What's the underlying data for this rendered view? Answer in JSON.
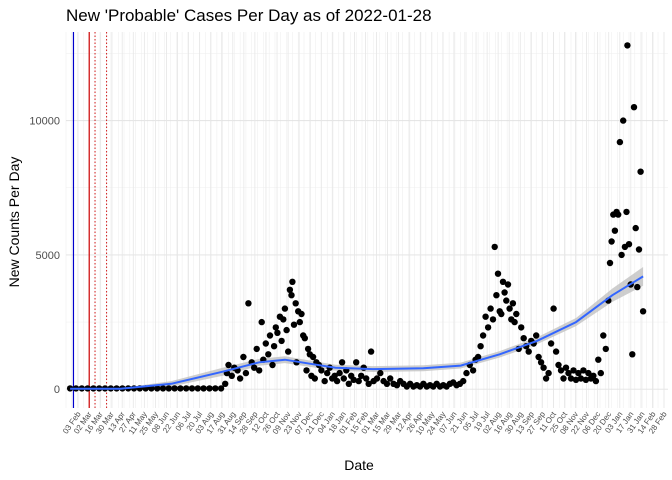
{
  "chart_data": {
    "type": "scatter",
    "title": "New 'Probable' Cases Per Day as of 2022-01-28",
    "xlabel": "Date",
    "ylabel": "New Counts Per Day",
    "x_range": [
      "2020-02-25",
      "2022-02-20"
    ],
    "ylim": [
      -700,
      13300
    ],
    "y_ticks": [
      0,
      5000,
      10000
    ],
    "x_tick_labels": [
      "03 Feb",
      "02 Mar",
      "16 Mar",
      "30 Mar",
      "13 Apr",
      "27 Apr",
      "11 May",
      "25 May",
      "08 Jun",
      "22 Jun",
      "06 Jul",
      "20 Jul",
      "03 Aug",
      "17 Aug",
      "31 Aug",
      "14 Sep",
      "28 Sep",
      "12 Oct",
      "26 Oct",
      "09 Nov",
      "23 Nov",
      "07 Dec",
      "21 Dec",
      "04 Jan",
      "18 Jan",
      "01 Feb",
      "15 Feb",
      "01 Mar",
      "15 Mar",
      "29 Mar",
      "12 Apr",
      "26 Apr",
      "10 May",
      "24 May",
      "07 Jun",
      "21 Jun",
      "05 Jul",
      "19 Jul",
      "02 Aug",
      "16 Aug",
      "30 Aug",
      "13 Sep",
      "27 Sep",
      "11 Oct",
      "25 Oct",
      "08 Nov",
      "22 Nov",
      "06 Dec",
      "20 Dec",
      "03 Jan",
      "17 Jan",
      "31 Jan",
      "14 Feb",
      "28 Feb"
    ],
    "grid": true,
    "vertical_lines": [
      {
        "date": "2020-03-05",
        "color": "#0000cc",
        "style": "solid"
      },
      {
        "date": "2020-03-24",
        "color": "#cc0000",
        "style": "solid"
      },
      {
        "date": "2020-03-31",
        "color": "#cc0000",
        "style": "dotted"
      },
      {
        "date": "2020-04-14",
        "color": "#cc0000",
        "style": "dotted"
      }
    ],
    "series": [
      {
        "kind": "points",
        "color": "#000000",
        "points": [
          [
            "2020-03-01",
            30
          ],
          [
            "2020-03-08",
            30
          ],
          [
            "2020-03-15",
            30
          ],
          [
            "2020-03-22",
            30
          ],
          [
            "2020-03-29",
            30
          ],
          [
            "2020-04-05",
            30
          ],
          [
            "2020-04-12",
            30
          ],
          [
            "2020-04-19",
            30
          ],
          [
            "2020-04-26",
            30
          ],
          [
            "2020-05-03",
            30
          ],
          [
            "2020-05-10",
            30
          ],
          [
            "2020-05-17",
            30
          ],
          [
            "2020-05-24",
            30
          ],
          [
            "2020-05-31",
            30
          ],
          [
            "2020-06-07",
            30
          ],
          [
            "2020-06-14",
            30
          ],
          [
            "2020-06-21",
            30
          ],
          [
            "2020-06-28",
            30
          ],
          [
            "2020-07-05",
            30
          ],
          [
            "2020-07-12",
            30
          ],
          [
            "2020-07-19",
            30
          ],
          [
            "2020-07-26",
            30
          ],
          [
            "2020-08-02",
            30
          ],
          [
            "2020-08-09",
            30
          ],
          [
            "2020-08-16",
            30
          ],
          [
            "2020-08-23",
            30
          ],
          [
            "2020-08-30",
            30
          ],
          [
            "2020-09-04",
            200
          ],
          [
            "2020-09-06",
            600
          ],
          [
            "2020-09-08",
            900
          ],
          [
            "2020-09-12",
            500
          ],
          [
            "2020-09-15",
            800
          ],
          [
            "2020-09-19",
            700
          ],
          [
            "2020-09-22",
            400
          ],
          [
            "2020-09-26",
            1200
          ],
          [
            "2020-09-29",
            600
          ],
          [
            "2020-10-02",
            3200
          ],
          [
            "2020-10-06",
            1000
          ],
          [
            "2020-10-09",
            800
          ],
          [
            "2020-10-12",
            1500
          ],
          [
            "2020-10-15",
            700
          ],
          [
            "2020-10-18",
            2500
          ],
          [
            "2020-10-20",
            1100
          ],
          [
            "2020-10-23",
            1700
          ],
          [
            "2020-10-26",
            1300
          ],
          [
            "2020-10-28",
            2000
          ],
          [
            "2020-10-31",
            900
          ],
          [
            "2020-11-02",
            1600
          ],
          [
            "2020-11-04",
            2300
          ],
          [
            "2020-11-06",
            2100
          ],
          [
            "2020-11-09",
            2700
          ],
          [
            "2020-11-11",
            1800
          ],
          [
            "2020-11-13",
            2600
          ],
          [
            "2020-11-15",
            3000
          ],
          [
            "2020-11-17",
            2200
          ],
          [
            "2020-11-19",
            1400
          ],
          [
            "2020-11-21",
            3700
          ],
          [
            "2020-11-23",
            3500
          ],
          [
            "2020-11-24",
            4000
          ],
          [
            "2020-11-26",
            2400
          ],
          [
            "2020-11-28",
            3200
          ],
          [
            "2020-11-29",
            1000
          ],
          [
            "2020-12-01",
            2900
          ],
          [
            "2020-12-03",
            2500
          ],
          [
            "2020-12-05",
            2800
          ],
          [
            "2020-12-07",
            2000
          ],
          [
            "2020-12-09",
            1900
          ],
          [
            "2020-12-11",
            700
          ],
          [
            "2020-12-13",
            1500
          ],
          [
            "2020-12-15",
            1300
          ],
          [
            "2020-12-17",
            500
          ],
          [
            "2020-12-19",
            1200
          ],
          [
            "2020-12-21",
            400
          ],
          [
            "2020-12-23",
            1000
          ],
          [
            "2020-12-26",
            900
          ],
          [
            "2020-12-29",
            700
          ],
          [
            "2021-01-02",
            300
          ],
          [
            "2021-01-05",
            600
          ],
          [
            "2021-01-08",
            800
          ],
          [
            "2021-01-11",
            400
          ],
          [
            "2021-01-14",
            500
          ],
          [
            "2021-01-17",
            300
          ],
          [
            "2021-01-20",
            600
          ],
          [
            "2021-01-23",
            1000
          ],
          [
            "2021-01-25",
            400
          ],
          [
            "2021-01-28",
            700
          ],
          [
            "2021-01-31",
            200
          ],
          [
            "2021-02-03",
            500
          ],
          [
            "2021-02-06",
            350
          ],
          [
            "2021-02-09",
            1000
          ],
          [
            "2021-02-12",
            300
          ],
          [
            "2021-02-15",
            500
          ],
          [
            "2021-02-18",
            800
          ],
          [
            "2021-02-21",
            400
          ],
          [
            "2021-02-24",
            200
          ],
          [
            "2021-02-27",
            1400
          ],
          [
            "2021-03-02",
            300
          ],
          [
            "2021-03-06",
            400
          ],
          [
            "2021-03-10",
            600
          ],
          [
            "2021-03-14",
            300
          ],
          [
            "2021-03-18",
            200
          ],
          [
            "2021-03-22",
            400
          ],
          [
            "2021-03-26",
            200
          ],
          [
            "2021-03-30",
            150
          ],
          [
            "2021-04-03",
            300
          ],
          [
            "2021-04-07",
            200
          ],
          [
            "2021-04-11",
            100
          ],
          [
            "2021-04-15",
            200
          ],
          [
            "2021-04-19",
            100
          ],
          [
            "2021-04-23",
            150
          ],
          [
            "2021-04-27",
            100
          ],
          [
            "2021-05-01",
            200
          ],
          [
            "2021-05-05",
            100
          ],
          [
            "2021-05-09",
            150
          ],
          [
            "2021-05-13",
            100
          ],
          [
            "2021-05-17",
            200
          ],
          [
            "2021-05-21",
            100
          ],
          [
            "2021-05-25",
            150
          ],
          [
            "2021-05-29",
            100
          ],
          [
            "2021-06-02",
            200
          ],
          [
            "2021-06-06",
            250
          ],
          [
            "2021-06-10",
            150
          ],
          [
            "2021-06-14",
            200
          ],
          [
            "2021-06-18",
            300
          ],
          [
            "2021-06-22",
            600
          ],
          [
            "2021-06-26",
            900
          ],
          [
            "2021-06-30",
            700
          ],
          [
            "2021-07-03",
            1100
          ],
          [
            "2021-07-06",
            1200
          ],
          [
            "2021-07-09",
            1600
          ],
          [
            "2021-07-12",
            2000
          ],
          [
            "2021-07-15",
            2700
          ],
          [
            "2021-07-18",
            2300
          ],
          [
            "2021-07-21",
            3000
          ],
          [
            "2021-07-24",
            2600
          ],
          [
            "2021-07-26",
            5300
          ],
          [
            "2021-07-28",
            3500
          ],
          [
            "2021-07-30",
            4300
          ],
          [
            "2021-08-01",
            2900
          ],
          [
            "2021-08-03",
            2800
          ],
          [
            "2021-08-05",
            4000
          ],
          [
            "2021-08-07",
            3600
          ],
          [
            "2021-08-09",
            3300
          ],
          [
            "2021-08-11",
            3900
          ],
          [
            "2021-08-13",
            3000
          ],
          [
            "2021-08-15",
            2600
          ],
          [
            "2021-08-17",
            3200
          ],
          [
            "2021-08-19",
            2500
          ],
          [
            "2021-08-21",
            2800
          ],
          [
            "2021-08-24",
            1500
          ],
          [
            "2021-08-27",
            2300
          ],
          [
            "2021-08-30",
            1900
          ],
          [
            "2021-09-02",
            1600
          ],
          [
            "2021-09-05",
            1400
          ],
          [
            "2021-09-08",
            1800
          ],
          [
            "2021-09-11",
            1700
          ],
          [
            "2021-09-14",
            2000
          ],
          [
            "2021-09-17",
            1200
          ],
          [
            "2021-09-20",
            1000
          ],
          [
            "2021-09-23",
            800
          ],
          [
            "2021-09-26",
            400
          ],
          [
            "2021-09-29",
            600
          ],
          [
            "2021-10-02",
            1700
          ],
          [
            "2021-10-05",
            3000
          ],
          [
            "2021-10-08",
            1400
          ],
          [
            "2021-10-11",
            900
          ],
          [
            "2021-10-14",
            700
          ],
          [
            "2021-10-17",
            400
          ],
          [
            "2021-10-20",
            800
          ],
          [
            "2021-10-23",
            600
          ],
          [
            "2021-10-26",
            400
          ],
          [
            "2021-10-29",
            700
          ],
          [
            "2021-11-01",
            350
          ],
          [
            "2021-11-04",
            600
          ],
          [
            "2021-11-07",
            400
          ],
          [
            "2021-11-10",
            700
          ],
          [
            "2021-11-13",
            350
          ],
          [
            "2021-11-16",
            600
          ],
          [
            "2021-11-19",
            400
          ],
          [
            "2021-11-22",
            500
          ],
          [
            "2021-11-25",
            300
          ],
          [
            "2021-11-28",
            1100
          ],
          [
            "2021-12-01",
            600
          ],
          [
            "2021-12-04",
            2000
          ],
          [
            "2021-12-07",
            1500
          ],
          [
            "2021-12-10",
            3300
          ],
          [
            "2021-12-12",
            4700
          ],
          [
            "2021-12-14",
            5500
          ],
          [
            "2021-12-16",
            6500
          ],
          [
            "2021-12-18",
            5900
          ],
          [
            "2021-12-20",
            6600
          ],
          [
            "2021-12-22",
            6500
          ],
          [
            "2021-12-24",
            9200
          ],
          [
            "2021-12-26",
            5000
          ],
          [
            "2021-12-28",
            10000
          ],
          [
            "2021-12-30",
            5300
          ],
          [
            "2022-01-01",
            6600
          ],
          [
            "2022-01-02",
            12800
          ],
          [
            "2022-01-04",
            5400
          ],
          [
            "2022-01-06",
            3900
          ],
          [
            "2022-01-08",
            1300
          ],
          [
            "2022-01-10",
            10500
          ],
          [
            "2022-01-12",
            6000
          ],
          [
            "2022-01-14",
            3800
          ],
          [
            "2022-01-16",
            5200
          ],
          [
            "2022-01-18",
            8100
          ],
          [
            "2022-01-21",
            2900
          ]
        ]
      },
      {
        "kind": "smooth",
        "color": "#3366ff",
        "band_color": "#bdbdbd",
        "points": [
          [
            "2020-03-01",
            20,
            10,
            30
          ],
          [
            "2020-05-01",
            20,
            0,
            40
          ],
          [
            "2020-07-01",
            200,
            100,
            300
          ],
          [
            "2020-09-01",
            650,
            500,
            800
          ],
          [
            "2020-10-15",
            1000,
            870,
            1130
          ],
          [
            "2020-11-15",
            1100,
            970,
            1230
          ],
          [
            "2020-12-15",
            950,
            830,
            1070
          ],
          [
            "2021-01-15",
            800,
            690,
            910
          ],
          [
            "2021-03-01",
            750,
            640,
            860
          ],
          [
            "2021-05-01",
            780,
            670,
            890
          ],
          [
            "2021-06-15",
            880,
            770,
            990
          ],
          [
            "2021-08-01",
            1300,
            1180,
            1420
          ],
          [
            "2021-09-15",
            1800,
            1670,
            1930
          ],
          [
            "2021-11-01",
            2500,
            2350,
            2650
          ],
          [
            "2021-12-15",
            3500,
            3250,
            3750
          ],
          [
            "2022-01-21",
            4200,
            3850,
            4550
          ]
        ]
      }
    ]
  }
}
